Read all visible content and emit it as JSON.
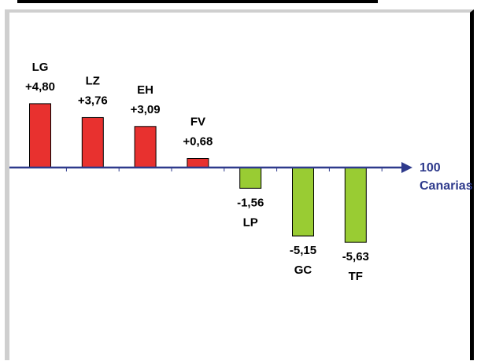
{
  "chart_data": {
    "type": "bar",
    "categories": [
      "LG",
      "LZ",
      "EH",
      "FV",
      "LP",
      "GC",
      "TF"
    ],
    "value_labels": [
      "+4,80",
      "+3,76",
      "+3,09",
      "+0,68",
      "-1,56",
      "-5,15",
      "-5,63"
    ],
    "values": [
      4.8,
      3.76,
      3.09,
      0.68,
      -1.56,
      -5.15,
      -5.63
    ],
    "baseline": 100,
    "baseline_label": "100",
    "baseline_caption": "Canarias",
    "ylim": [
      -7,
      7
    ],
    "grid": false
  },
  "colors": {
    "positive": "#e8312f",
    "negative": "#99cc33",
    "axis": "#2e3a8c",
    "bar_outline": "#000000"
  }
}
